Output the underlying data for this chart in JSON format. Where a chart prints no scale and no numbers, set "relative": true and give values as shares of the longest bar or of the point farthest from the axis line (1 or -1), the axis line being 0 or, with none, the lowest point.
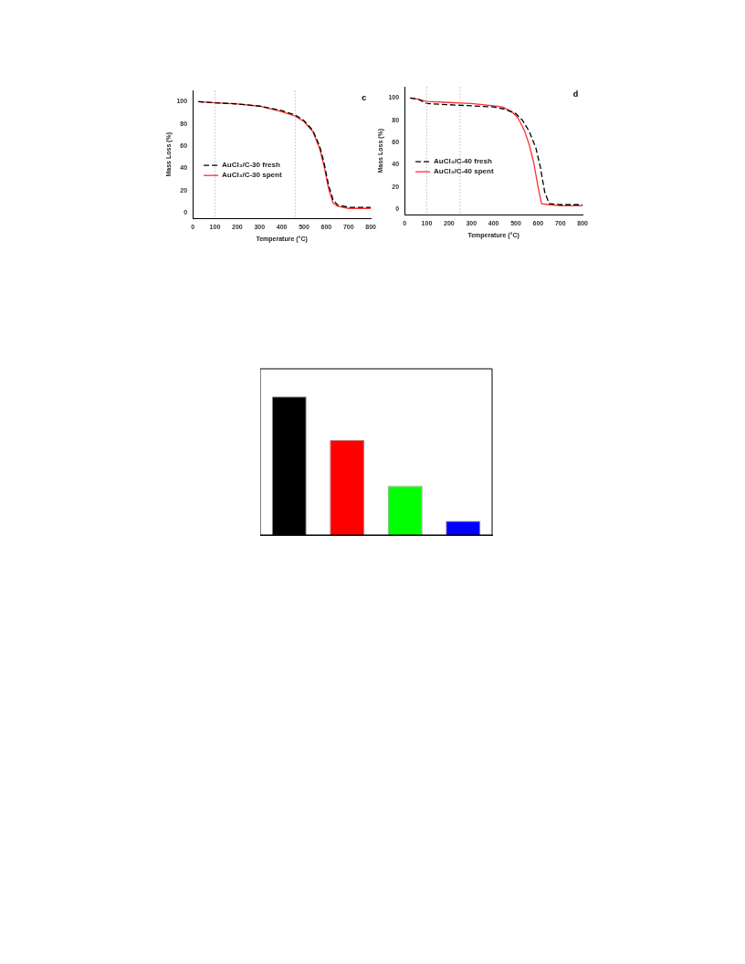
{
  "chart_data": [
    {
      "type": "line",
      "xlabel": "Temperature (°C)",
      "ylabel": "Mass Loss (%)",
      "annotations": [
        "c"
      ],
      "xlim": [
        0,
        800
      ],
      "ylim": [
        -5,
        110
      ],
      "xticks": [
        0,
        100,
        200,
        300,
        400,
        500,
        600,
        700,
        800
      ],
      "yticks": [
        0,
        20,
        40,
        60,
        80,
        100
      ],
      "legend": "left",
      "grid": false,
      "marker": "none",
      "ref_lines": [
        {
          "axis": "x",
          "value": 100,
          "color": "#aaaaaa",
          "line_style": "dotted"
        },
        {
          "axis": "x",
          "value": 460,
          "color": "#aaaaaa",
          "line_style": "dotted"
        }
      ],
      "series": [
        {
          "name": "AuCl₃/C-30 fresh",
          "color": "#000000",
          "line_style": "dashed",
          "x": [
            25,
            100,
            200,
            300,
            400,
            460,
            500,
            540,
            570,
            590,
            610,
            630,
            650,
            700,
            800
          ],
          "values": [
            100,
            99,
            98,
            96,
            92,
            88,
            83,
            74,
            60,
            45,
            25,
            12,
            7,
            5,
            5
          ]
        },
        {
          "name": "AuCl₃/C-30 spent",
          "color": "#ff3030",
          "line_style": "solid",
          "x": [
            25,
            100,
            200,
            300,
            400,
            460,
            500,
            540,
            570,
            590,
            610,
            630,
            650,
            700,
            800
          ],
          "values": [
            100,
            99,
            98,
            96,
            91,
            87,
            82,
            73,
            58,
            42,
            22,
            9,
            6,
            4,
            4
          ]
        }
      ]
    },
    {
      "type": "line",
      "xlabel": "Temperature (°C)",
      "ylabel": "Mass Loss (%)",
      "annotations": [
        "d"
      ],
      "xlim": [
        0,
        800
      ],
      "ylim": [
        -5,
        110
      ],
      "xticks": [
        0,
        100,
        200,
        300,
        400,
        500,
        600,
        700,
        800
      ],
      "yticks": [
        0,
        20,
        40,
        60,
        80,
        100
      ],
      "legend": "left",
      "grid": false,
      "marker": "none",
      "ref_lines": [
        {
          "axis": "x",
          "value": 100,
          "color": "#aaaaaa",
          "line_style": "dotted"
        },
        {
          "axis": "x",
          "value": 250,
          "color": "#aaaaaa",
          "line_style": "dotted"
        }
      ],
      "series": [
        {
          "name": "AuCl₃/C-40 fresh",
          "color": "#000000",
          "line_style": "dashed",
          "x": [
            25,
            60,
            100,
            200,
            300,
            400,
            450,
            500,
            530,
            560,
            590,
            610,
            630,
            650,
            700,
            800
          ],
          "values": [
            100,
            99,
            95,
            94,
            93,
            92,
            90,
            86,
            80,
            70,
            55,
            38,
            15,
            5,
            4,
            4
          ]
        },
        {
          "name": "AuCl₃/C-40 spent",
          "color": "#ff3030",
          "line_style": "solid",
          "x": [
            25,
            60,
            100,
            200,
            300,
            400,
            440,
            480,
            510,
            540,
            560,
            580,
            600,
            615,
            650,
            700,
            800
          ],
          "values": [
            100,
            99,
            97,
            96,
            95,
            93,
            92,
            88,
            82,
            70,
            58,
            42,
            20,
            5,
            4,
            3,
            3
          ]
        }
      ]
    },
    {
      "type": "bar",
      "relative": true,
      "categories": [
        null,
        null,
        null,
        null
      ],
      "values": [
        1,
        0.688,
        0.355,
        0.102
      ],
      "colors": [
        "#000000",
        "#ff0000",
        "#00ff00",
        "#0000ff"
      ]
    }
  ]
}
